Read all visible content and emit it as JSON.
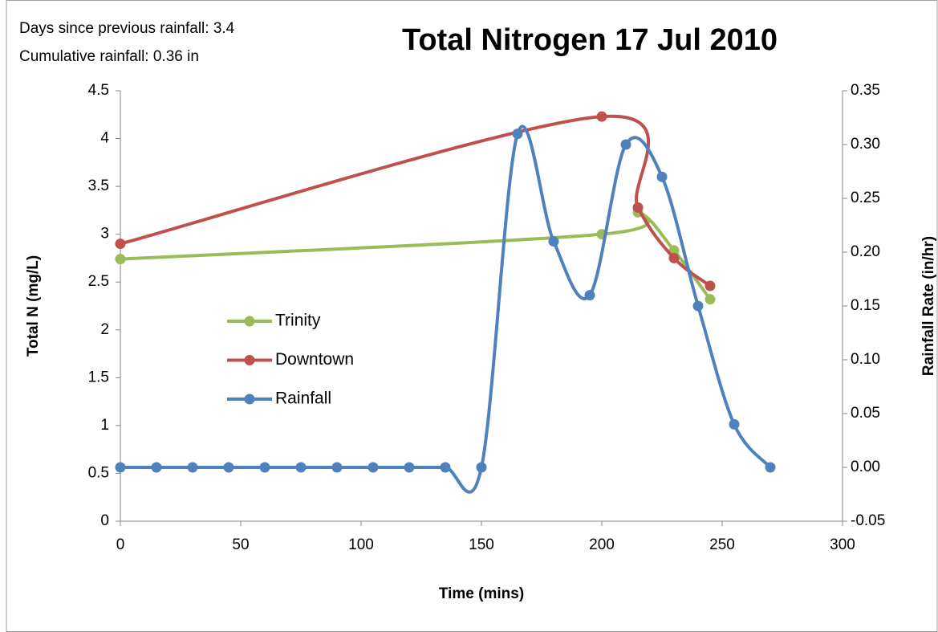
{
  "chart_data": {
    "type": "line",
    "title": "Total Nitrogen 17 Jul 2010",
    "annotations": [
      "Days since previous rainfall: 3.4",
      "Cumulative rainfall: 0.36 in"
    ],
    "xlabel": "Time (mins)",
    "ylabel": "Total N (mg/L)",
    "y2label": "Rainfall Rate (in/hr)",
    "xlim": [
      0,
      300
    ],
    "xticks": [
      0,
      50,
      100,
      150,
      200,
      250,
      300
    ],
    "ylim": [
      0,
      4.5
    ],
    "yticks": [
      0,
      0.5,
      1,
      1.5,
      2,
      2.5,
      3,
      3.5,
      4,
      4.5
    ],
    "y2lim": [
      -0.05,
      0.35
    ],
    "y2ticks": [
      -0.05,
      {
        "value": 0,
        "label": "0.00"
      },
      0.05,
      {
        "value": 0.1,
        "label": "0.10"
      },
      0.15,
      {
        "value": 0.2,
        "label": "0.20"
      },
      0.25,
      {
        "value": 0.3,
        "label": "0.30"
      },
      0.35
    ],
    "grid": false,
    "smooth": true,
    "legend": "left",
    "series": [
      {
        "name": "Trinity",
        "color": "#9bbb59",
        "x": [
          0,
          200,
          215,
          230,
          245
        ],
        "values": [
          2.74,
          3.0,
          3.23,
          2.83,
          2.32
        ]
      },
      {
        "name": "Downtown",
        "color": "#c0504d",
        "x": [
          0,
          200,
          215,
          230,
          245
        ],
        "values": [
          2.9,
          4.23,
          3.28,
          2.75,
          2.46
        ]
      },
      {
        "name": "Rainfall",
        "color": "#4f81bd",
        "axis": "y2",
        "x": [
          0,
          15,
          30,
          45,
          60,
          75,
          90,
          105,
          120,
          135,
          150,
          165,
          180,
          195,
          210,
          225,
          240,
          255,
          270
        ],
        "values": [
          0,
          0,
          0,
          0,
          0,
          0,
          0,
          0,
          0,
          0,
          0,
          0.31,
          0.21,
          0.16,
          0.3,
          0.27,
          0.15,
          0.04,
          0
        ]
      }
    ]
  }
}
